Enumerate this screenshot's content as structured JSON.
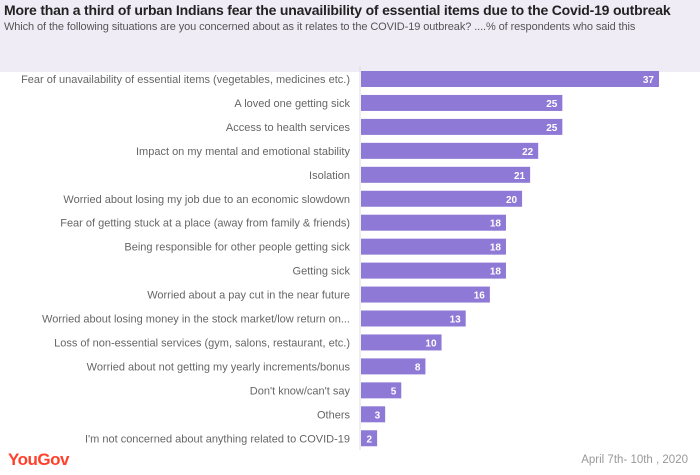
{
  "header": {
    "title": "More than a third of urban Indians fear the unavailibility of essential items due to the Covid-19 outbreak",
    "subtitle": "Which of the following situations are you concerned about as it relates to the COVID-19 outbreak? ....% of respondents who said this"
  },
  "footer": {
    "logo": "YouGov",
    "date": "April 7th- 10th , 2020"
  },
  "colors": {
    "bar": "#8e79d6",
    "header_bg": "#efecf6",
    "label": "#666666",
    "logo": "#ff412c"
  },
  "chart_data": {
    "type": "bar",
    "orientation": "horizontal",
    "categories": [
      "Fear of unavailability of essential items (vegetables, medicines etc.)",
      "A loved one getting sick",
      "Access to health services",
      "Impact on my mental and emotional stability",
      "Isolation",
      "Worried about losing my job due to an economic slowdown",
      "Fear of getting stuck at a place (away from family & friends)",
      "Being responsible for other people getting sick",
      "Getting sick",
      "Worried about a pay cut in the near future",
      "Worried about losing money in the stock market/low return on...",
      "Loss of non-essential services (gym, salons, restaurant, etc.)",
      "Worried about not getting my yearly increments/bonus",
      "Don't know/can't say",
      "Others",
      "I'm not concerned about anything related to COVID-19"
    ],
    "values": [
      37,
      25,
      25,
      22,
      21,
      20,
      18,
      18,
      18,
      16,
      13,
      10,
      8,
      5,
      3,
      2
    ],
    "unit": "%",
    "grid": false
  }
}
